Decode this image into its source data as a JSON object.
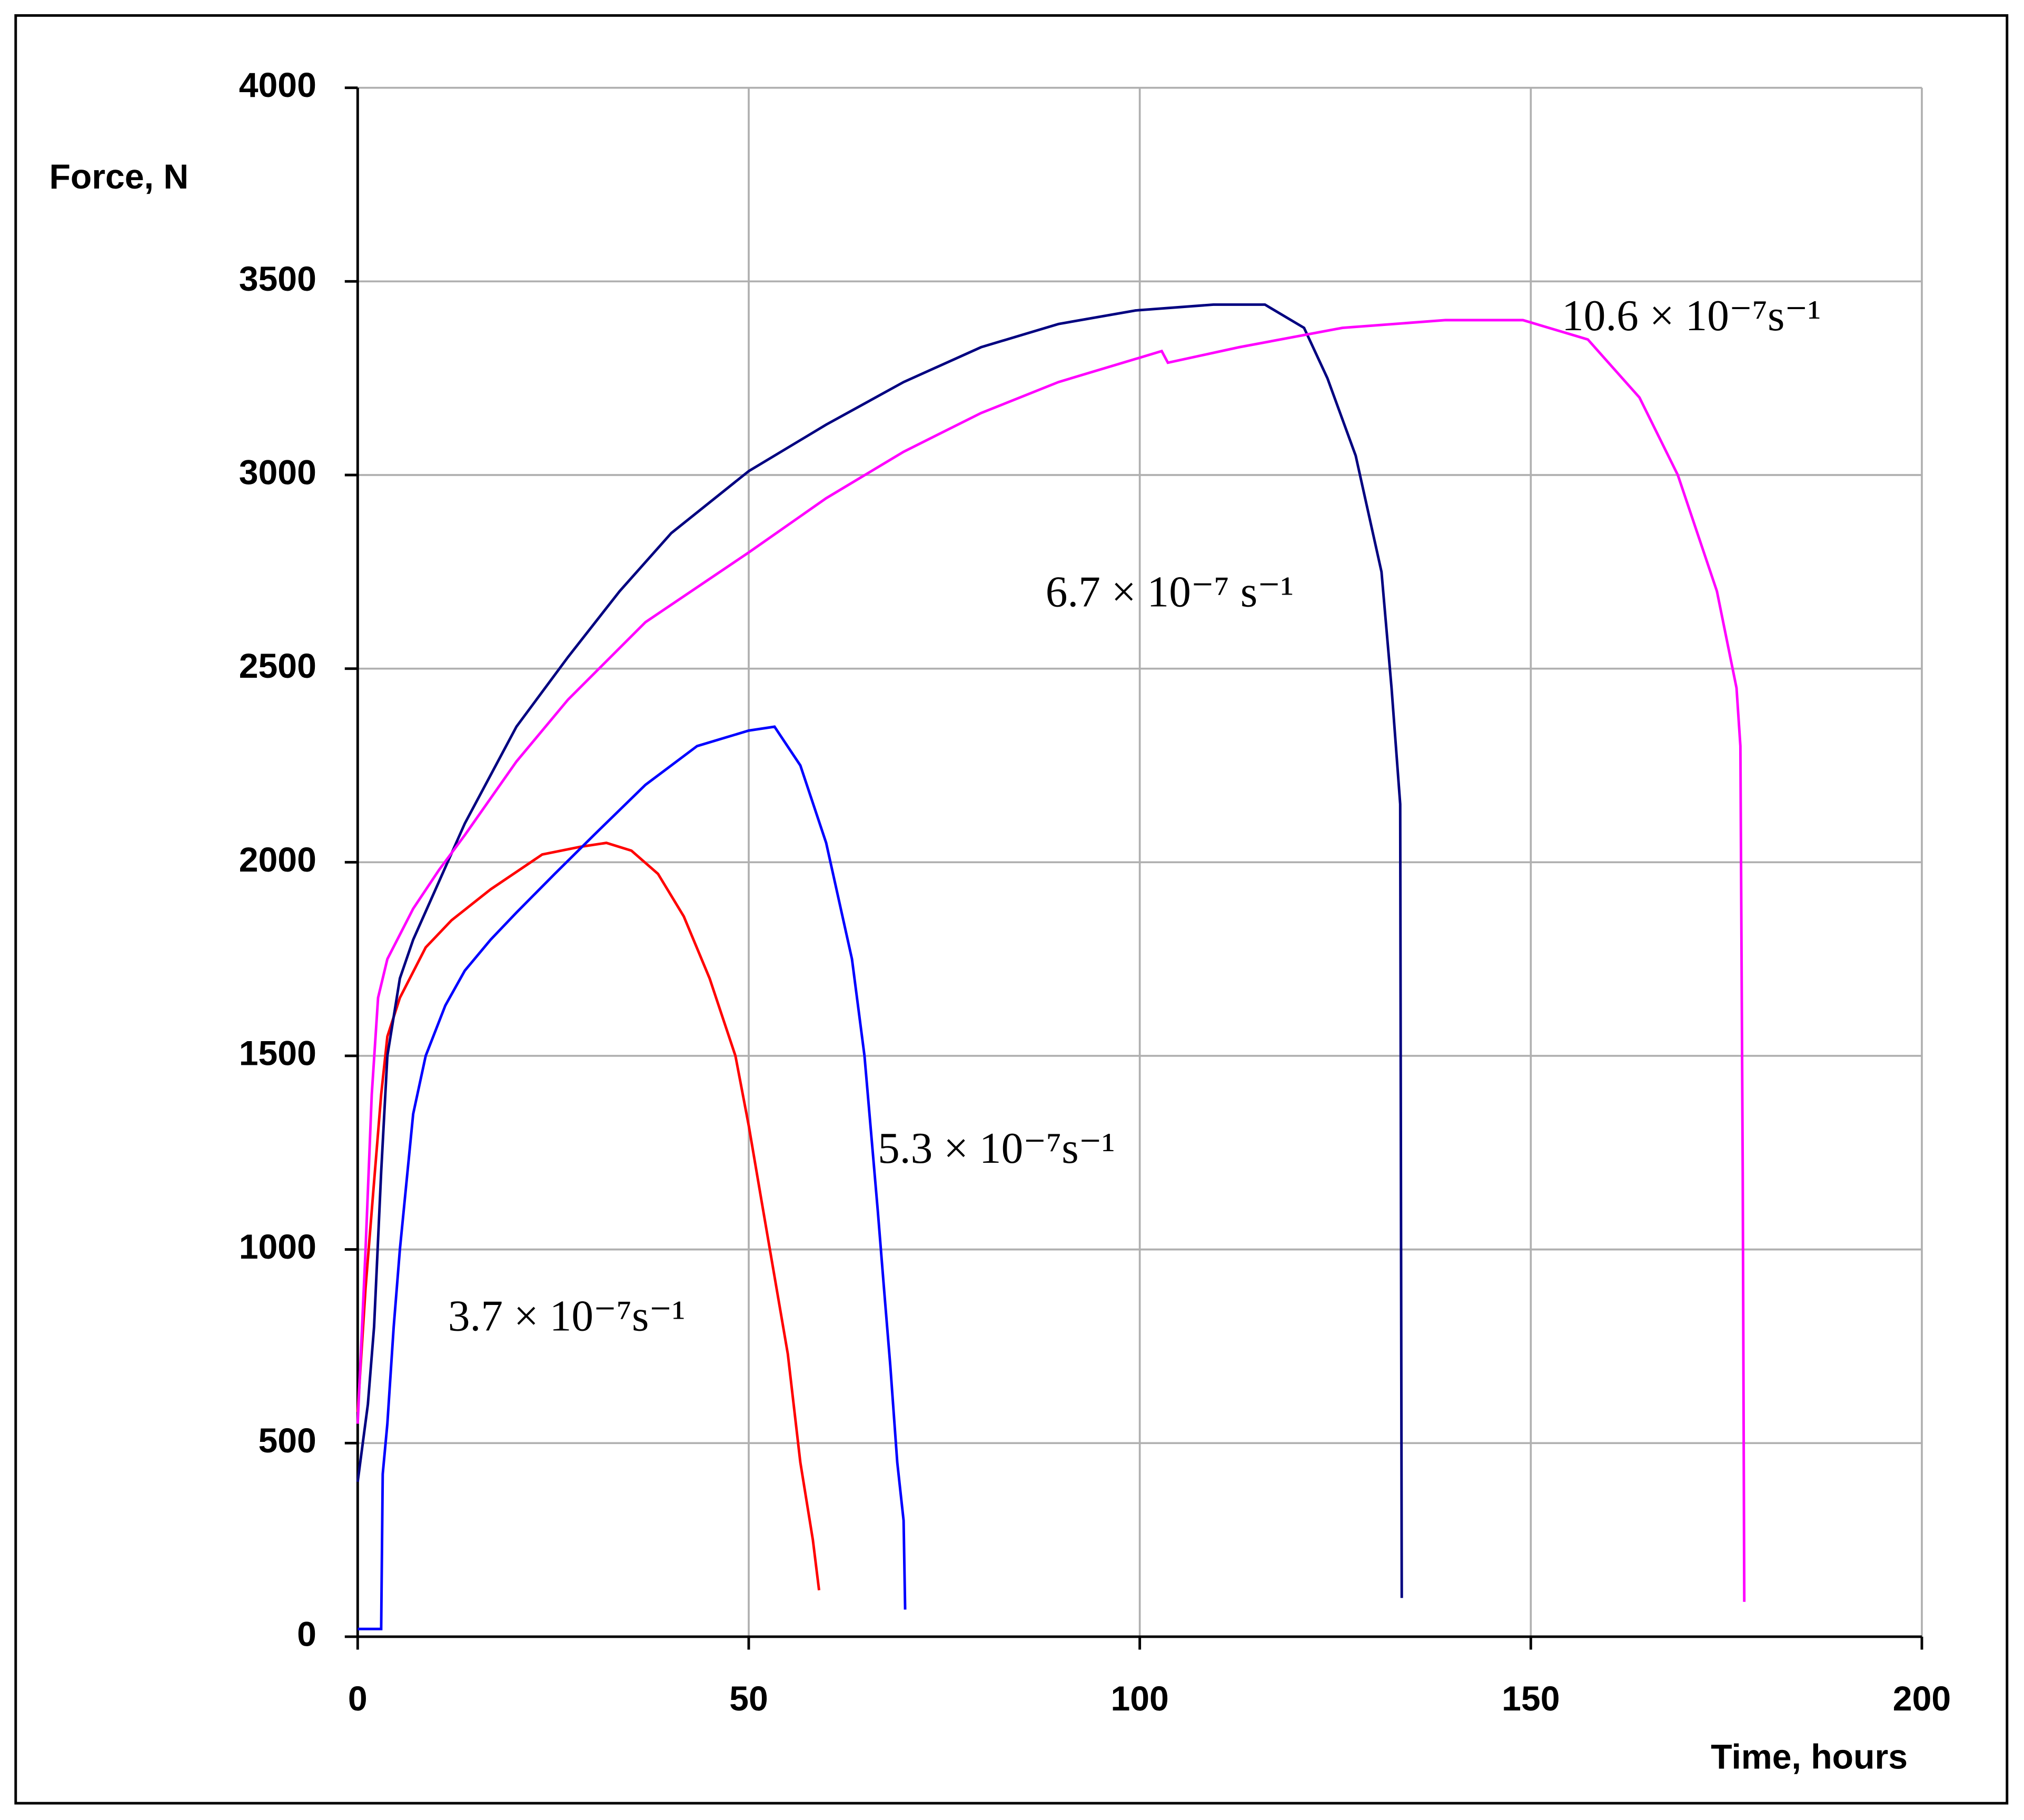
{
  "chart_data": {
    "type": "line",
    "xlabel": "Time, hours",
    "ylabel": "Force, N",
    "xlim": [
      0,
      200
    ],
    "xticks": [
      0,
      50,
      100,
      150,
      200
    ],
    "ylim": [
      0,
      4000
    ],
    "yticks": [
      0,
      500,
      1000,
      1500,
      2000,
      2500,
      3000,
      3500,
      4000
    ],
    "grid": true,
    "series": [
      {
        "name": "3.7 × 10⁻⁷s⁻¹",
        "color": "#ff0000",
        "x": [
          0,
          1,
          2,
          3,
          3.8,
          5.4,
          8.7,
          12,
          17,
          23.6,
          28.5,
          31.8,
          35,
          38.4,
          41.7,
          45,
          48.3,
          50,
          51.6,
          53.3,
          55,
          56.6,
          58.2,
          59
        ],
        "values": [
          580,
          900,
          1150,
          1400,
          1550,
          1650,
          1780,
          1850,
          1930,
          2020,
          2040,
          2050,
          2030,
          1970,
          1860,
          1700,
          1500,
          1320,
          1130,
          930,
          730,
          450,
          250,
          120
        ]
      },
      {
        "name": "5.3 × 10⁻⁷s⁻¹",
        "color": "#0000ff",
        "x": [
          0,
          3,
          3.2,
          3.8,
          4.6,
          5.4,
          7.1,
          8.7,
          11.2,
          13.7,
          17,
          20.3,
          25.2,
          30.2,
          36.8,
          43.4,
          50,
          53.3,
          56.6,
          59.9,
          63.2,
          64.8,
          66.5,
          67.3,
          68.1,
          69,
          69.8,
          70
        ],
        "values": [
          20,
          20,
          420,
          550,
          800,
          1000,
          1350,
          1500,
          1630,
          1720,
          1800,
          1870,
          1970,
          2070,
          2200,
          2300,
          2340,
          2350,
          2250,
          2050,
          1750,
          1500,
          1100,
          900,
          700,
          450,
          300,
          70
        ]
      },
      {
        "name": "6.7 × 10⁻⁷ s⁻¹",
        "color": "#000080",
        "x": [
          0,
          1.3,
          2.1,
          3,
          3.8,
          5.4,
          7.1,
          10.4,
          13.7,
          20.3,
          26.9,
          33.5,
          40.1,
          50,
          59.9,
          69.8,
          79.7,
          89.6,
          99.5,
          109.4,
          116,
          121,
          124,
          127.6,
          130.9,
          132.2,
          133.3,
          133.5
        ],
        "values": [
          400,
          600,
          800,
          1200,
          1500,
          1700,
          1800,
          1950,
          2100,
          2350,
          2530,
          2700,
          2850,
          3010,
          3130,
          3240,
          3330,
          3390,
          3425,
          3440,
          3440,
          3380,
          3250,
          3050,
          2750,
          2450,
          2150,
          100
        ]
      },
      {
        "name": "10.6 × 10⁻⁷s⁻¹",
        "color": "#ff00ff",
        "x": [
          0,
          1,
          1.8,
          2.6,
          3.8,
          7.1,
          10.4,
          13.7,
          20.3,
          26.9,
          36.8,
          50,
          59.9,
          69.8,
          79.7,
          89.6,
          102.8,
          103.6,
          112.7,
          125.9,
          139.1,
          149,
          157.3,
          163.9,
          168.8,
          173.8,
          176.3,
          176.8,
          177.1,
          177.3
        ],
        "values": [
          550,
          1000,
          1400,
          1650,
          1750,
          1880,
          1980,
          2070,
          2260,
          2420,
          2620,
          2800,
          2940,
          3060,
          3160,
          3240,
          3320,
          3290,
          3330,
          3380,
          3400,
          3400,
          3350,
          3200,
          3000,
          2700,
          2450,
          2300,
          1200,
          90
        ]
      }
    ]
  }
}
